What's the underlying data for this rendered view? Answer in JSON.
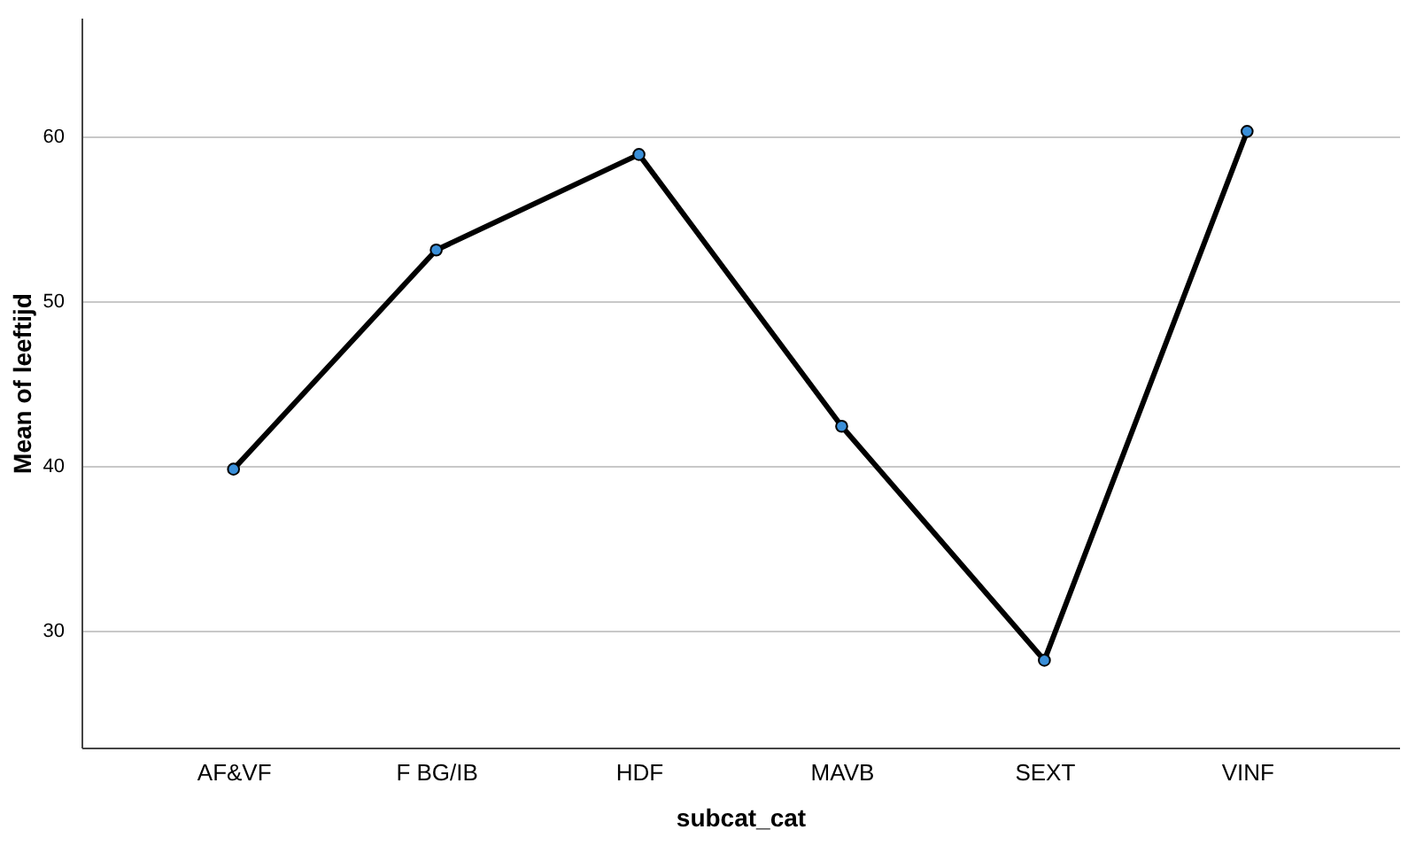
{
  "chart_data": {
    "type": "line",
    "xlabel": "subcat_cat",
    "ylabel": "Mean of leeftijd",
    "categories": [
      "AF&VF",
      "F BG/IB",
      "HDF",
      "MAVB",
      "SEXT",
      "VINF"
    ],
    "series": [
      {
        "color": "#000000",
        "values": [
          39.8,
          53.1,
          58.9,
          42.4,
          28.2,
          60.3
        ]
      }
    ],
    "marker": "circle",
    "line_style": "solid",
    "ylim": [
      22.9,
      67.2
    ],
    "yticks": [
      30,
      40,
      50,
      60
    ],
    "grid": "y"
  }
}
